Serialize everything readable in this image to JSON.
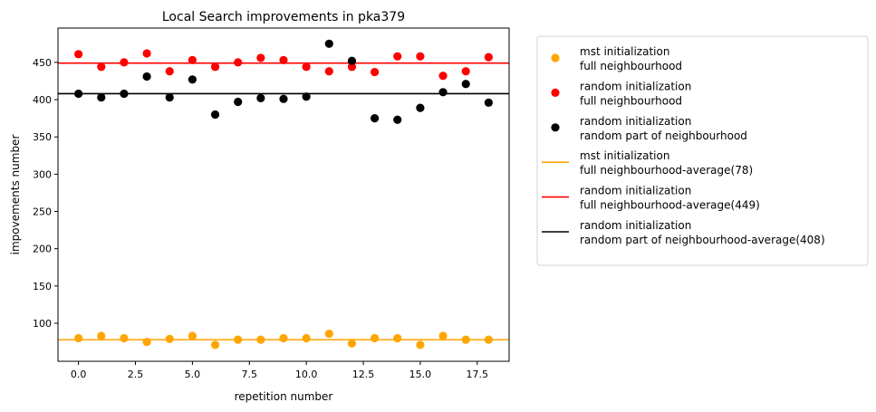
{
  "chart_data": {
    "type": "scatter",
    "title": "Local Search improvements in pka379",
    "xlabel": "repetition number",
    "ylabel": "impovements number",
    "xlim": [
      -0.9,
      18.9
    ],
    "ylim": [
      49,
      496
    ],
    "x_ticks": [
      0.0,
      2.5,
      5.0,
      7.5,
      10.0,
      12.5,
      15.0,
      17.5
    ],
    "x_tick_labels": [
      "0.0",
      "2.5",
      "5.0",
      "7.5",
      "10.0",
      "12.5",
      "15.0",
      "17.5"
    ],
    "y_ticks": [
      100,
      150,
      200,
      250,
      300,
      350,
      400,
      450
    ],
    "y_tick_labels": [
      "100",
      "150",
      "200",
      "250",
      "300",
      "350",
      "400",
      "450"
    ],
    "grid": false,
    "legend_position": "outside-right",
    "x": [
      0,
      1,
      2,
      3,
      4,
      5,
      6,
      7,
      8,
      9,
      10,
      11,
      12,
      13,
      14,
      15,
      16,
      17,
      18
    ],
    "series": [
      {
        "name": "mst initialization\nfull neighbourhood",
        "color": "#ffa500",
        "values": [
          80,
          83,
          80,
          75,
          79,
          83,
          71,
          78,
          78,
          80,
          80,
          86,
          73,
          80,
          80,
          71,
          83,
          78,
          78
        ]
      },
      {
        "name": "random initialization\nfull neighbourhood",
        "color": "#ff0000",
        "values": [
          461,
          444,
          450,
          462,
          438,
          453,
          444,
          450,
          456,
          453,
          444,
          438,
          444,
          437,
          458,
          458,
          432,
          438,
          457
        ]
      },
      {
        "name": "random initialization\nrandom part of neighbourhood",
        "color": "#000000",
        "values": [
          408,
          403,
          408,
          431,
          403,
          427,
          380,
          397,
          402,
          401,
          404,
          475,
          452,
          375,
          373,
          389,
          410,
          421,
          396
        ]
      }
    ],
    "hlines": [
      {
        "name": "mst initialization\nfull neighbourhood-average(78)",
        "color": "#ffa500",
        "value": 78
      },
      {
        "name": "random initialization\nfull neighbourhood-average(449)",
        "color": "#ff0000",
        "value": 449
      },
      {
        "name": "random initialization\nrandom part of neighbourhood-average(408)",
        "color": "#000000",
        "value": 408
      }
    ]
  }
}
